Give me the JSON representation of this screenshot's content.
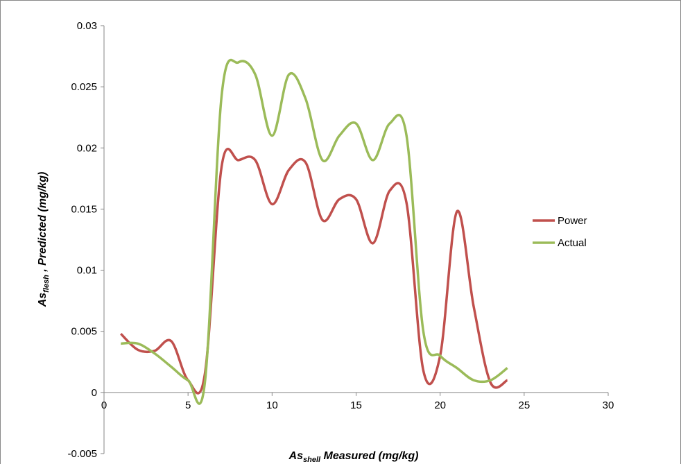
{
  "chart_data": {
    "type": "line",
    "x": [
      1,
      2,
      3,
      4,
      5,
      6,
      7,
      8,
      9,
      10,
      11,
      12,
      13,
      14,
      15,
      16,
      17,
      18,
      19,
      20,
      21,
      22,
      23,
      24
    ],
    "series": [
      {
        "name": "Power",
        "color": "#c0504d",
        "values": [
          0.0048,
          0.0035,
          0.0034,
          0.0042,
          0.001,
          0.0015,
          0.0185,
          0.019,
          0.019,
          0.0154,
          0.0182,
          0.0188,
          0.0141,
          0.0158,
          0.0158,
          0.0122,
          0.0165,
          0.0155,
          0.0018,
          0.003,
          0.0148,
          0.007,
          0.0008,
          0.001
        ]
      },
      {
        "name": "Actual",
        "color": "#9bbb59",
        "values": [
          0.004,
          0.004,
          0.0032,
          0.0021,
          0.001,
          0.0008,
          0.0243,
          0.027,
          0.026,
          0.021,
          0.026,
          0.024,
          0.019,
          0.021,
          0.022,
          0.019,
          0.022,
          0.021,
          0.005,
          0.003,
          0.002,
          0.001,
          0.001,
          0.002
        ]
      }
    ],
    "x_label": {
      "main": "As",
      "sub": "shell",
      "rest": " Measured (mg/kg)"
    },
    "y_label": {
      "main": "As",
      "sub": "flesh",
      "rest": " , Predicted (mg/kg)"
    },
    "xlim": [
      0,
      30
    ],
    "xticks": [
      0,
      5,
      10,
      15,
      20,
      25,
      30
    ],
    "ylim": [
      -0.005,
      0.03
    ],
    "yticks": [
      -0.005,
      0,
      0.005,
      0.01,
      0.015,
      0.02,
      0.025,
      0.03
    ],
    "smooth": true,
    "legend": "right"
  }
}
